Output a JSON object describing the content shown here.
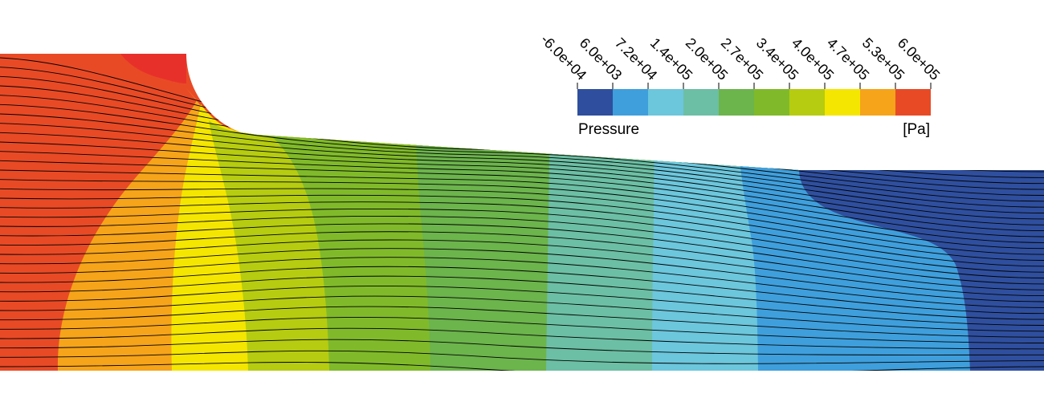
{
  "legend": {
    "title": "Pressure",
    "unit": "[Pa]",
    "tick_labels": [
      "-6.0e+04",
      "6.0e+03",
      "7.2e+04",
      "1.4e+05",
      "2.0e+05",
      "2.7e+05",
      "3.4e+05",
      "4.0e+05",
      "4.7e+05",
      "5.3e+05",
      "6.0e+05"
    ],
    "band_colors": [
      "#2f4f9e",
      "#3f9fdc",
      "#6cc6dc",
      "#6cbfa4",
      "#6cb44c",
      "#80ba2a",
      "#b6cc10",
      "#f4e600",
      "#f6a41a",
      "#e84a26"
    ]
  },
  "field": {
    "description_colors": {
      "highest": "#e8302a",
      "level_10": "#e84a26",
      "level_9": "#f6a41a",
      "level_8": "#f4e600",
      "level_7": "#b6cc10",
      "level_6": "#80ba2a",
      "level_5": "#6cb44c",
      "level_4": "#6cbfa4",
      "level_3": "#6cc6dc",
      "level_2": "#3f9fdc",
      "level_1": "#2f4f9e"
    },
    "streamline_count": 34
  }
}
